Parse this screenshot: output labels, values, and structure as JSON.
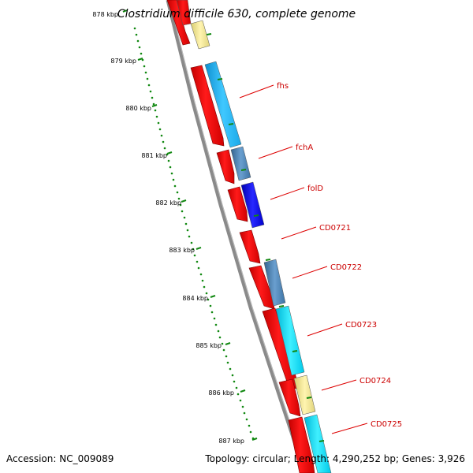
{
  "title": "Clostridium difficile 630, complete genome",
  "accession": "Accession: NC_009089",
  "summary": "Topology: circular; Length: 4,290,252 bp; Genes: 3,926",
  "ruler_labels": [
    "878 kbp",
    "879 kbp",
    "880 kbp",
    "881 kbp",
    "882 kbp",
    "883 kbp",
    "884 kbp",
    "885 kbp",
    "886 kbp",
    "887 kbp"
  ],
  "gene_labels": [
    "fhs",
    "fchA",
    "folD",
    "CD0721",
    "CD0722",
    "CD0723",
    "CD0724",
    "CD0725"
  ],
  "colors": {
    "backbone": "#8a8a8a",
    "forward_cds": "#ff0000",
    "label_line": "#dd0000",
    "label_text": "#cc0000",
    "ruler_ticks": "#118811",
    "cyan": "#00e5ff",
    "sky": "#1ab8f0",
    "steel": "#4a82b4",
    "blue": "#0000ee",
    "khaki": "#f0e68c"
  }
}
